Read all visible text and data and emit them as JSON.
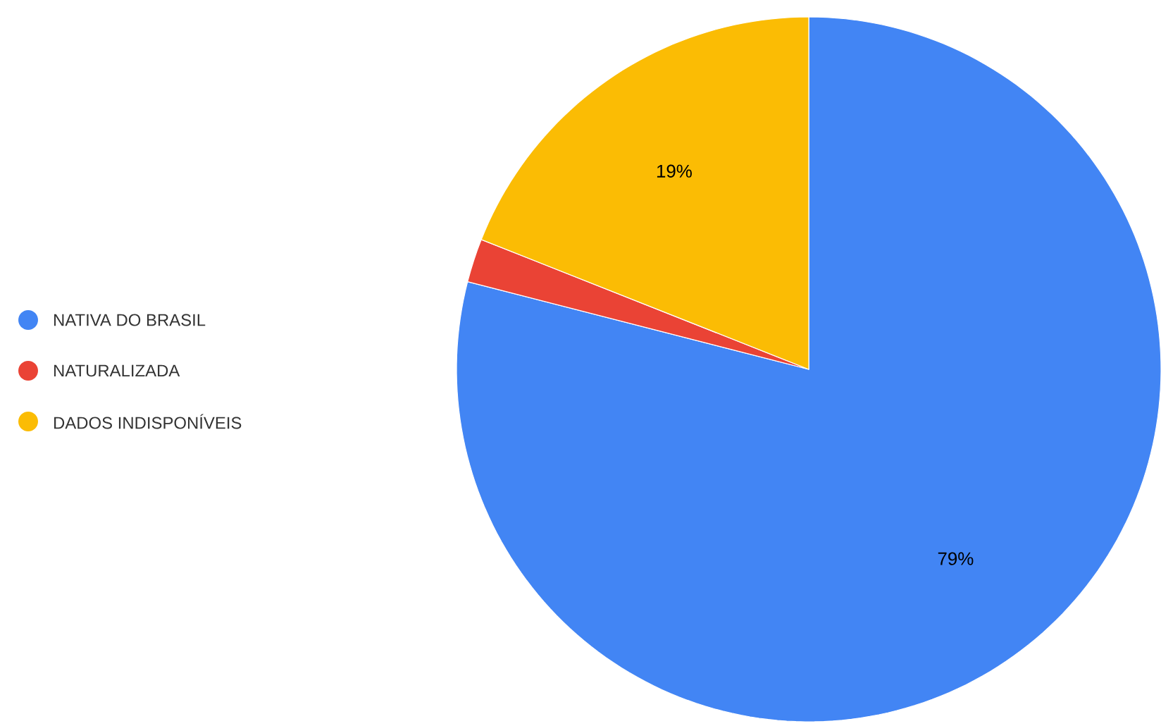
{
  "chart_data": {
    "type": "pie",
    "categories": [
      "NATIVA DO BRASIL",
      "NATURALIZADA",
      "DADOS INDISPONÍVEIS"
    ],
    "values": [
      79,
      2,
      19
    ],
    "colors": [
      "#4285f4",
      "#ea4335",
      "#fbbc04"
    ],
    "value_labels": [
      "79%",
      null,
      "19%"
    ],
    "legend": "left"
  }
}
